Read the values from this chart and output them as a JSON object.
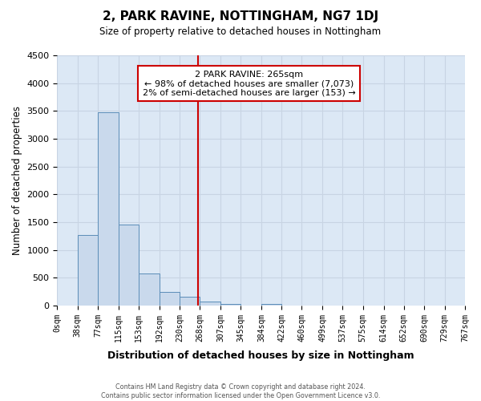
{
  "title": "2, PARK RAVINE, NOTTINGHAM, NG7 1DJ",
  "subtitle": "Size of property relative to detached houses in Nottingham",
  "xlabel": "Distribution of detached houses by size in Nottingham",
  "ylabel": "Number of detached properties",
  "bin_edges": [
    0,
    38,
    77,
    115,
    153,
    192,
    230,
    268,
    307,
    345,
    384,
    422,
    460,
    499,
    537,
    575,
    614,
    652,
    690,
    729,
    767
  ],
  "bar_heights": [
    0,
    1270,
    3470,
    1450,
    580,
    245,
    155,
    75,
    25,
    5,
    30,
    0,
    0,
    0,
    0,
    0,
    0,
    0,
    0,
    0
  ],
  "bar_color": "#c9d9ec",
  "bar_edgecolor": "#5b8db8",
  "vline_x": 265,
  "vline_color": "#cc0000",
  "ylim": [
    0,
    4500
  ],
  "yticks": [
    0,
    500,
    1000,
    1500,
    2000,
    2500,
    3000,
    3500,
    4000,
    4500
  ],
  "annotation_title": "2 PARK RAVINE: 265sqm",
  "annotation_line1": "← 98% of detached houses are smaller (7,073)",
  "annotation_line2": "2% of semi-detached houses are larger (153) →",
  "annotation_box_color": "#ffffff",
  "annotation_box_edgecolor": "#cc0000",
  "grid_color": "#c8d4e3",
  "background_color": "#dce8f5",
  "footer_line1": "Contains HM Land Registry data © Crown copyright and database right 2024.",
  "footer_line2": "Contains public sector information licensed under the Open Government Licence v3.0.",
  "tick_labels": [
    "0sqm",
    "38sqm",
    "77sqm",
    "115sqm",
    "153sqm",
    "192sqm",
    "230sqm",
    "268sqm",
    "307sqm",
    "345sqm",
    "384sqm",
    "422sqm",
    "460sqm",
    "499sqm",
    "537sqm",
    "575sqm",
    "614sqm",
    "652sqm",
    "690sqm",
    "729sqm",
    "767sqm"
  ],
  "xlim": [
    0,
    767
  ]
}
